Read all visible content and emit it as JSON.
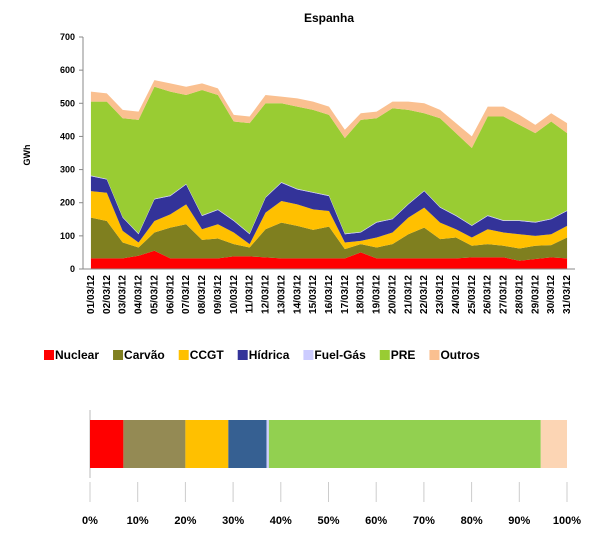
{
  "chart_data": [
    {
      "type": "stacked_area",
      "title": "Espanha",
      "y_label": "GWh",
      "categories": [
        "01/03/12",
        "02/03/12",
        "03/03/12",
        "04/03/12",
        "05/03/12",
        "06/03/12",
        "07/03/12",
        "08/03/12",
        "09/03/12",
        "10/03/12",
        "11/03/12",
        "12/03/12",
        "13/03/12",
        "14/03/12",
        "15/03/12",
        "16/03/12",
        "17/03/12",
        "18/03/12",
        "19/03/12",
        "20/03/12",
        "21/03/12",
        "22/03/12",
        "23/03/12",
        "24/03/12",
        "25/03/12",
        "26/03/12",
        "27/03/12",
        "28/03/12",
        "29/03/12",
        "30/03/12",
        "31/03/12"
      ],
      "ylim": [
        0,
        700
      ],
      "yticks": [
        0,
        100,
        200,
        300,
        400,
        500,
        600,
        700
      ],
      "grid": false,
      "series": [
        {
          "name": "Nuclear",
          "color": "#ff0000",
          "values": [
            32,
            32,
            32,
            40,
            55,
            32,
            32,
            32,
            32,
            38,
            38,
            35,
            32,
            32,
            32,
            32,
            32,
            50,
            32,
            32,
            32,
            32,
            32,
            32,
            35,
            35,
            35,
            25,
            30,
            35,
            32
          ]
        },
        {
          "name": "Carvão",
          "color": "#7f7f1f",
          "values": [
            123,
            113,
            48,
            25,
            55,
            93,
            103,
            56,
            60,
            37,
            27,
            85,
            108,
            98,
            86,
            96,
            28,
            25,
            33,
            43,
            73,
            93,
            58,
            63,
            35,
            40,
            35,
            37,
            40,
            37,
            63
          ]
        },
        {
          "name": "CCGT",
          "color": "#ffc000",
          "values": [
            80,
            85,
            35,
            15,
            35,
            40,
            60,
            32,
            43,
            35,
            10,
            50,
            65,
            65,
            62,
            47,
            20,
            10,
            30,
            35,
            50,
            60,
            50,
            25,
            25,
            45,
            40,
            43,
            30,
            33,
            35
          ]
        },
        {
          "name": "Hídrica",
          "color": "#333399",
          "values": [
            45,
            40,
            40,
            25,
            65,
            55,
            60,
            40,
            43,
            35,
            30,
            45,
            55,
            45,
            50,
            45,
            25,
            25,
            45,
            40,
            40,
            50,
            45,
            40,
            35,
            40,
            35,
            40,
            40,
            45,
            45
          ]
        },
        {
          "name": "Fuel-Gás",
          "color": "#ccccff",
          "values": [
            2,
            2,
            2,
            2,
            2,
            2,
            2,
            2,
            2,
            2,
            2,
            2,
            2,
            2,
            2,
            2,
            2,
            2,
            2,
            2,
            2,
            2,
            2,
            2,
            2,
            2,
            2,
            2,
            2,
            2,
            2
          ]
        },
        {
          "name": "PRE",
          "color": "#99cc33",
          "values": [
            223,
            233,
            298,
            343,
            338,
            313,
            268,
            378,
            345,
            298,
            333,
            283,
            238,
            248,
            248,
            243,
            288,
            338,
            313,
            333,
            283,
            233,
            268,
            248,
            233,
            298,
            313,
            288,
            268,
            293,
            233
          ]
        },
        {
          "name": "Outros",
          "color": "#fac090",
          "values": [
            30,
            25,
            25,
            25,
            20,
            25,
            25,
            20,
            20,
            20,
            20,
            25,
            20,
            25,
            25,
            25,
            25,
            20,
            20,
            20,
            25,
            30,
            25,
            30,
            35,
            30,
            30,
            30,
            25,
            25,
            30
          ]
        }
      ]
    },
    {
      "type": "stacked_hbar",
      "values": [
        7,
        13,
        9,
        8,
        0.5,
        57,
        5.5
      ],
      "colors": [
        "#ff0000",
        "#948a54",
        "#ffc000",
        "#366092",
        "#ccccff",
        "#92d050",
        "#fcd5b4"
      ],
      "xlim": [
        0,
        100
      ],
      "xticks": [
        {
          "value": 0,
          "label": "0%"
        },
        {
          "value": 10,
          "label": "10%"
        },
        {
          "value": 20,
          "label": "20%"
        },
        {
          "value": 30,
          "label": "30%"
        },
        {
          "value": 40,
          "label": "40%"
        },
        {
          "value": 50,
          "label": "50%"
        },
        {
          "value": 60,
          "label": "60%"
        },
        {
          "value": 70,
          "label": "70%"
        },
        {
          "value": 80,
          "label": "80%"
        },
        {
          "value": 90,
          "label": "90%"
        },
        {
          "value": 100,
          "label": "100%"
        }
      ]
    }
  ]
}
